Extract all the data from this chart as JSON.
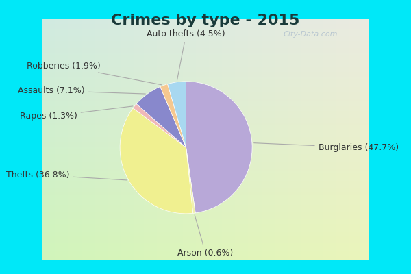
{
  "title": "Crimes by type - 2015",
  "title_fontsize": 16,
  "slices": [
    {
      "label": "Burglaries (47.7%)",
      "value": 47.7,
      "color": "#b8a8d8"
    },
    {
      "label": "Arson (0.6%)",
      "value": 0.6,
      "color": "#f0f0b0"
    },
    {
      "label": "Thefts (36.8%)",
      "value": 36.8,
      "color": "#f0f090"
    },
    {
      "label": "Rapes (1.3%)",
      "value": 1.3,
      "color": "#f0b8b8"
    },
    {
      "label": "Assaults (7.1%)",
      "value": 7.1,
      "color": "#8888cc"
    },
    {
      "label": "Robberies (1.9%)",
      "value": 1.9,
      "color": "#f5c890"
    },
    {
      "label": "Auto thefts (4.5%)",
      "value": 4.5,
      "color": "#a8d8f0"
    }
  ],
  "border_color": "#00e8f8",
  "inner_bg_color": "#d4ede0",
  "watermark": "City-Data.com",
  "label_fontsize": 9,
  "startangle": 90,
  "border_width": 8
}
